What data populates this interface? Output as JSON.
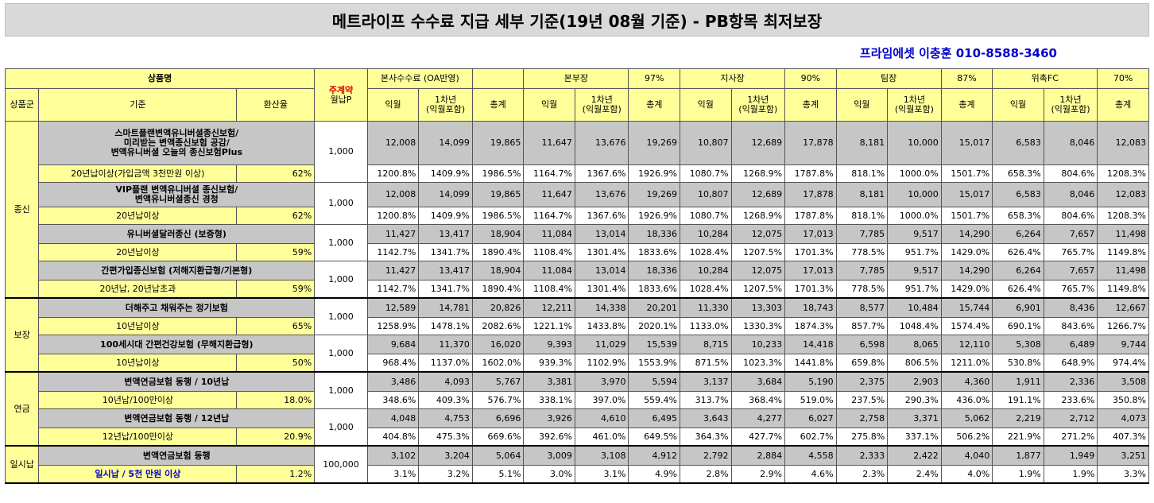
{
  "title": "메트라이프 수수료 지급 세부 기준(19년 08월 기준) - PB항목 최저보장",
  "contact": "프라임에셋 이충훈 010-8588-3460",
  "header": {
    "product_name": "상품명",
    "main_contract": "주계약",
    "monthly_premium": "월납P",
    "group": "상품군",
    "criteria": "기준",
    "conversion_rate": "환산율",
    "levels": [
      {
        "name": "본사수수료 (OA반영)",
        "pct": ""
      },
      {
        "name": "본부장",
        "pct": "97%"
      },
      {
        "name": "지사장",
        "pct": "90%"
      },
      {
        "name": "팀장",
        "pct": "87%"
      },
      {
        "name": "위촉FC",
        "pct": "70%"
      }
    ],
    "sub_cols": [
      "익월",
      "1차년\n(익월포함)",
      "총계"
    ]
  },
  "groups": [
    {
      "name": "종신",
      "products": [
        {
          "name": "스마트플랜변액유니버셜종신보험/\n미리받는 변액종신보험 공감/\n변액유니버셜 오늘의 종신보험Plus",
          "criteria": "20년납이상(가입금액 3천만원 이상)",
          "rate": "62%",
          "premium": "1,000",
          "amounts": [
            "12,008",
            "14,099",
            "19,865",
            "11,647",
            "13,676",
            "19,269",
            "10,807",
            "12,689",
            "17,878",
            "8,181",
            "10,000",
            "15,017",
            "6,583",
            "8,046",
            "12,083"
          ],
          "percents": [
            "1200.8%",
            "1409.9%",
            "1986.5%",
            "1164.7%",
            "1367.6%",
            "1926.9%",
            "1080.7%",
            "1268.9%",
            "1787.8%",
            "818.1%",
            "1000.0%",
            "1501.7%",
            "658.3%",
            "804.6%",
            "1208.3%"
          ]
        },
        {
          "name": "VIP플랜 변액유니버셜 종신보험/\n변액유니버셜종신 경청",
          "criteria": "20년납이상",
          "rate": "62%",
          "premium": "1,000",
          "amounts": [
            "12,008",
            "14,099",
            "19,865",
            "11,647",
            "13,676",
            "19,269",
            "10,807",
            "12,689",
            "17,878",
            "8,181",
            "10,000",
            "15,017",
            "6,583",
            "8,046",
            "12,083"
          ],
          "percents": [
            "1200.8%",
            "1409.9%",
            "1986.5%",
            "1164.7%",
            "1367.6%",
            "1926.9%",
            "1080.7%",
            "1268.9%",
            "1787.8%",
            "818.1%",
            "1000.0%",
            "1501.7%",
            "658.3%",
            "804.6%",
            "1208.3%"
          ]
        },
        {
          "name": "유니버셜달러종신 (보증형)",
          "criteria": "20년납이상",
          "rate": "59%",
          "premium": "1,000",
          "amounts": [
            "11,427",
            "13,417",
            "18,904",
            "11,084",
            "13,014",
            "18,336",
            "10,284",
            "12,075",
            "17,013",
            "7,785",
            "9,517",
            "14,290",
            "6,264",
            "7,657",
            "11,498"
          ],
          "percents": [
            "1142.7%",
            "1341.7%",
            "1890.4%",
            "1108.4%",
            "1301.4%",
            "1833.6%",
            "1028.4%",
            "1207.5%",
            "1701.3%",
            "778.5%",
            "951.7%",
            "1429.0%",
            "626.4%",
            "765.7%",
            "1149.8%"
          ]
        },
        {
          "name": "간편가입종신보험 (저해지환급형/기본형)",
          "criteria": "20년납, 20년납초과",
          "rate": "59%",
          "premium": "1,000",
          "amounts": [
            "11,427",
            "13,417",
            "18,904",
            "11,084",
            "13,014",
            "18,336",
            "10,284",
            "12,075",
            "17,013",
            "7,785",
            "9,517",
            "14,290",
            "6,264",
            "7,657",
            "11,498"
          ],
          "percents": [
            "1142.7%",
            "1341.7%",
            "1890.4%",
            "1108.4%",
            "1301.4%",
            "1833.6%",
            "1028.4%",
            "1207.5%",
            "1701.3%",
            "778.5%",
            "951.7%",
            "1429.0%",
            "626.4%",
            "765.7%",
            "1149.8%"
          ]
        }
      ]
    },
    {
      "name": "보장",
      "products": [
        {
          "name": "더해주고 채워주는 정기보험",
          "criteria": "10년납이상",
          "rate": "65%",
          "premium": "1,000",
          "amounts": [
            "12,589",
            "14,781",
            "20,826",
            "12,211",
            "14,338",
            "20,201",
            "11,330",
            "13,303",
            "18,743",
            "8,577",
            "10,484",
            "15,744",
            "6,901",
            "8,436",
            "12,667"
          ],
          "percents": [
            "1258.9%",
            "1478.1%",
            "2082.6%",
            "1221.1%",
            "1433.8%",
            "2020.1%",
            "1133.0%",
            "1330.3%",
            "1874.3%",
            "857.7%",
            "1048.4%",
            "1574.4%",
            "690.1%",
            "843.6%",
            "1266.7%"
          ]
        },
        {
          "name": "100세시대 간편건강보험 (무해지환급형)",
          "criteria": "10년납이상",
          "rate": "50%",
          "premium": "1,000",
          "amounts": [
            "9,684",
            "11,370",
            "16,020",
            "9,393",
            "11,029",
            "15,539",
            "8,715",
            "10,233",
            "14,418",
            "6,598",
            "8,065",
            "12,110",
            "5,308",
            "6,489",
            "9,744"
          ],
          "percents": [
            "968.4%",
            "1137.0%",
            "1602.0%",
            "939.3%",
            "1102.9%",
            "1553.9%",
            "871.5%",
            "1023.3%",
            "1441.8%",
            "659.8%",
            "806.5%",
            "1211.0%",
            "530.8%",
            "648.9%",
            "974.4%"
          ]
        }
      ]
    },
    {
      "name": "연금",
      "products": [
        {
          "name": "변액연금보험 동행 / 10년납",
          "criteria": "10년납/100만이상",
          "rate": "18.0%",
          "premium": "1,000",
          "amounts": [
            "3,486",
            "4,093",
            "5,767",
            "3,381",
            "3,970",
            "5,594",
            "3,137",
            "3,684",
            "5,190",
            "2,375",
            "2,903",
            "4,360",
            "1,911",
            "2,336",
            "3,508"
          ],
          "percents": [
            "348.6%",
            "409.3%",
            "576.7%",
            "338.1%",
            "397.0%",
            "559.4%",
            "313.7%",
            "368.4%",
            "519.0%",
            "237.5%",
            "290.3%",
            "436.0%",
            "191.1%",
            "233.6%",
            "350.8%"
          ]
        },
        {
          "name": "변액연금보험 동행 / 12년납",
          "criteria": "12년납/100만이상",
          "rate": "20.9%",
          "premium": "1,000",
          "amounts": [
            "4,048",
            "4,753",
            "6,696",
            "3,926",
            "4,610",
            "6,495",
            "3,643",
            "4,277",
            "6,027",
            "2,758",
            "3,371",
            "5,062",
            "2,219",
            "2,712",
            "4,073"
          ],
          "percents": [
            "404.8%",
            "475.3%",
            "669.6%",
            "392.6%",
            "461.0%",
            "649.5%",
            "364.3%",
            "427.7%",
            "602.7%",
            "275.8%",
            "337.1%",
            "506.2%",
            "221.9%",
            "271.2%",
            "407.3%"
          ]
        }
      ]
    },
    {
      "name": "일시납",
      "products": [
        {
          "name": "변액연금보험 동행",
          "criteria": "일시납 / 5천 만원 이상",
          "rate": "1.2%",
          "premium": "100,000",
          "blue": true,
          "amounts": [
            "3,102",
            "3,204",
            "5,064",
            "3,009",
            "3,108",
            "4,912",
            "2,792",
            "2,884",
            "4,558",
            "2,333",
            "2,422",
            "4,040",
            "1,877",
            "1,949",
            "3,251"
          ],
          "percents": [
            "3.1%",
            "3.2%",
            "5.1%",
            "3.0%",
            "3.1%",
            "4.9%",
            "2.8%",
            "2.9%",
            "4.6%",
            "2.3%",
            "2.4%",
            "4.0%",
            "1.9%",
            "1.9%",
            "3.3%"
          ]
        }
      ]
    }
  ]
}
